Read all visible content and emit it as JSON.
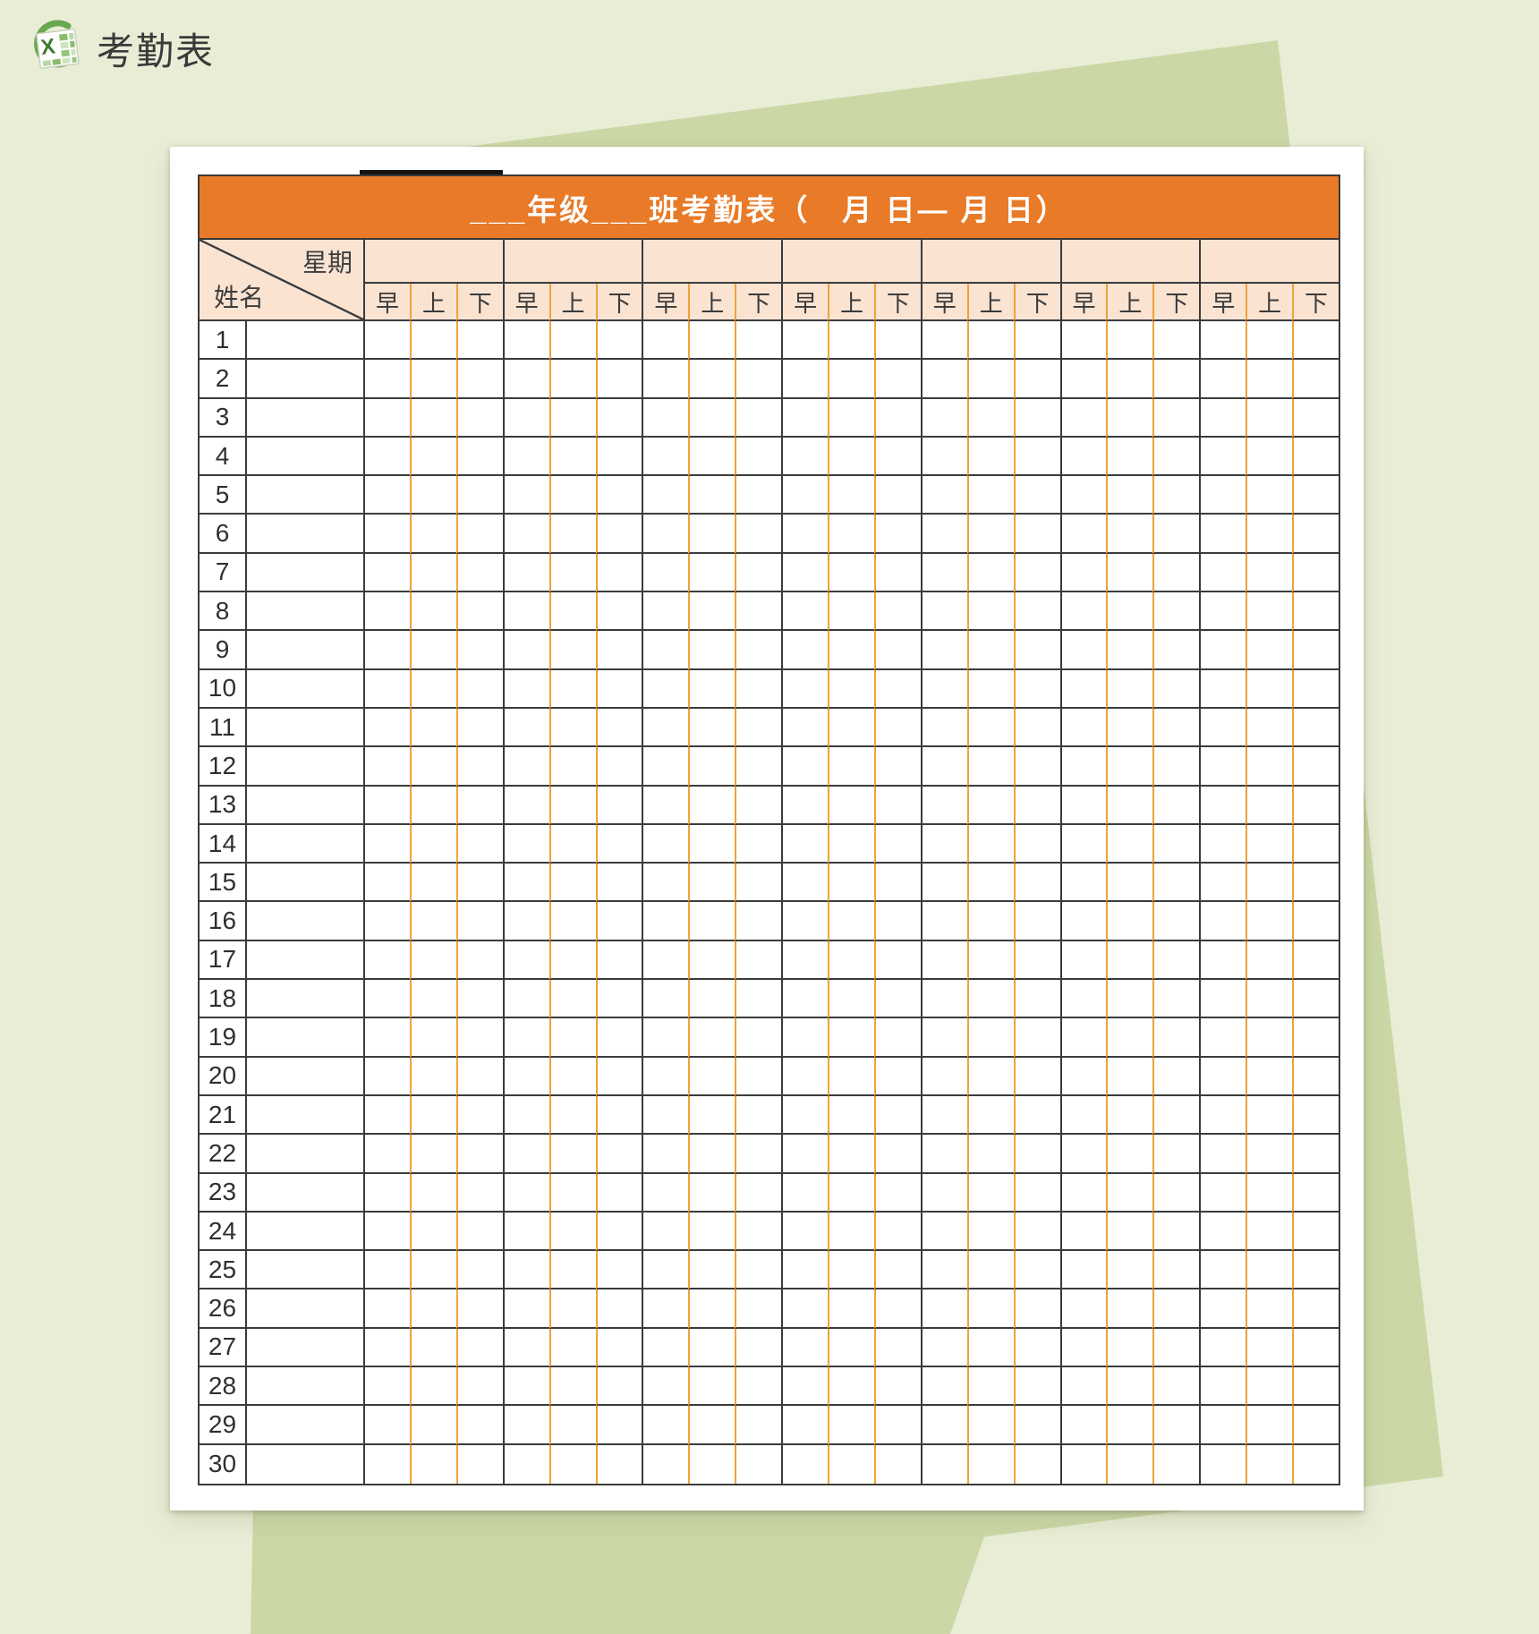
{
  "page": {
    "background_color": "#E9EDD6",
    "shape_color": "#CBD8A6",
    "header": {
      "icon": "excel-icon",
      "label": "考勤表"
    }
  },
  "sheet": {
    "title": "___年级___班考勤表（　月  日—  月  日）",
    "title_bg": "#E87A28",
    "header_bg": "#FBE3D2",
    "grid_dark_color": "#3B3B3B",
    "grid_orange_color": "#F0A23A",
    "corner": {
      "top_label": "星期",
      "bottom_label": "姓名"
    },
    "period_labels": [
      "早",
      "上",
      "下"
    ],
    "day_group_count": 7,
    "row_numbers": [
      "1",
      "2",
      "3",
      "4",
      "5",
      "6",
      "7",
      "8",
      "9",
      "10",
      "11",
      "12",
      "13",
      "14",
      "15",
      "16",
      "17",
      "18",
      "19",
      "20",
      "21",
      "22",
      "23",
      "24",
      "25",
      "26",
      "27",
      "28",
      "29",
      "30"
    ]
  }
}
